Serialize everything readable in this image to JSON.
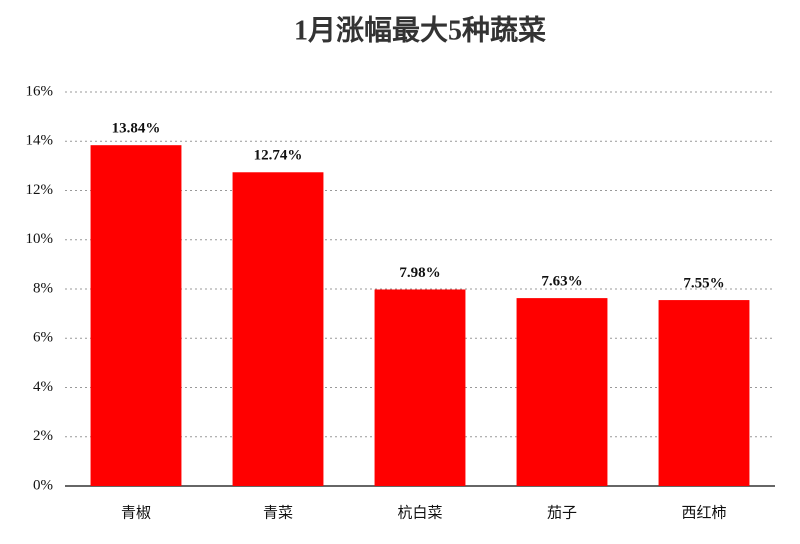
{
  "chart_data": {
    "type": "bar",
    "title": "1月涨幅最大5种蔬菜",
    "categories": [
      "青椒",
      "青菜",
      "杭白菜",
      "茄子",
      "西红柿"
    ],
    "values": [
      13.84,
      12.74,
      7.98,
      7.63,
      7.55
    ],
    "value_labels": [
      "13.84%",
      "12.74%",
      "7.98%",
      "7.63%",
      "7.55%"
    ],
    "color": "#ff0000",
    "ylim": [
      0,
      16
    ],
    "yticks": [
      {
        "value": 0,
        "label": "0%"
      },
      {
        "value": 2,
        "label": "2%"
      },
      {
        "value": 4,
        "label": "4%"
      },
      {
        "value": 6,
        "label": "6%"
      },
      {
        "value": 8,
        "label": "8%"
      },
      {
        "value": 10,
        "label": "10%"
      },
      {
        "value": 12,
        "label": "12%"
      },
      {
        "value": 14,
        "label": "14%"
      },
      {
        "value": 16,
        "label": "16%"
      }
    ],
    "grid": true
  }
}
